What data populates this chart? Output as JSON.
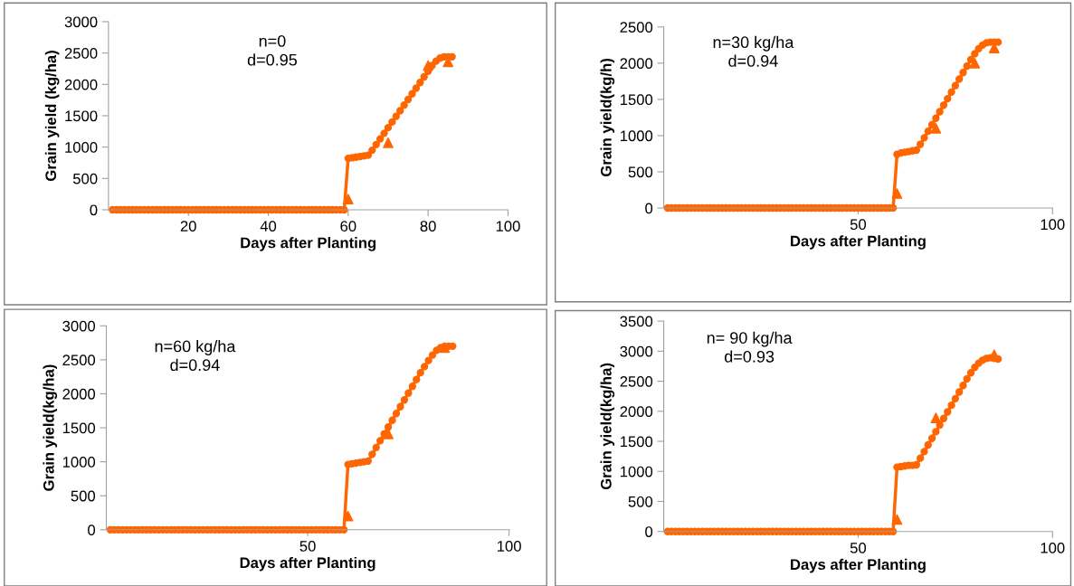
{
  "chart_data": [
    {
      "type": "line",
      "xlabel": "Days after Planting",
      "ylabel": "Grain yield (kg/ha)",
      "annotations": [
        "n=0\nd=0.95"
      ],
      "xlim": [
        0,
        100
      ],
      "xticks": [
        20,
        40,
        60,
        80,
        100
      ],
      "ylim": [
        0,
        3000
      ],
      "yticks": [
        0,
        500,
        1000,
        1500,
        2000,
        2500,
        3000
      ],
      "grid": false,
      "legend": false,
      "series": [
        {
          "type": "line",
          "marker": "circle",
          "color": "#ff6600",
          "x": [
            1,
            2,
            3,
            4,
            5,
            6,
            7,
            8,
            9,
            10,
            11,
            12,
            13,
            14,
            15,
            16,
            17,
            18,
            19,
            20,
            21,
            22,
            23,
            24,
            25,
            26,
            27,
            28,
            29,
            30,
            31,
            32,
            33,
            34,
            35,
            36,
            37,
            38,
            39,
            40,
            41,
            42,
            43,
            44,
            45,
            46,
            47,
            48,
            49,
            50,
            51,
            52,
            53,
            54,
            55,
            56,
            57,
            58,
            59,
            60,
            61,
            62,
            63,
            64,
            65,
            66,
            67,
            68,
            69,
            70,
            71,
            72,
            73,
            74,
            75,
            76,
            77,
            78,
            79,
            80,
            81,
            82,
            83,
            84,
            85,
            86
          ],
          "values": [
            0,
            0,
            0,
            0,
            0,
            0,
            0,
            0,
            0,
            0,
            0,
            0,
            0,
            0,
            0,
            0,
            0,
            0,
            0,
            0,
            0,
            0,
            0,
            0,
            0,
            0,
            0,
            0,
            0,
            0,
            0,
            0,
            0,
            0,
            0,
            0,
            0,
            0,
            0,
            0,
            0,
            0,
            0,
            0,
            0,
            0,
            0,
            0,
            0,
            0,
            0,
            0,
            0,
            0,
            0,
            0,
            0,
            0,
            0,
            820,
            830,
            840,
            850,
            860,
            870,
            950,
            1040,
            1130,
            1220,
            1310,
            1400,
            1490,
            1580,
            1670,
            1760,
            1850,
            1940,
            2030,
            2120,
            2210,
            2300,
            2370,
            2420,
            2440,
            2440,
            2440
          ]
        },
        {
          "type": "scatter",
          "marker": "triangle",
          "color": "#ff6600",
          "x": [
            60,
            70,
            80,
            85
          ],
          "values": [
            170,
            1070,
            2300,
            2360
          ]
        }
      ]
    },
    {
      "type": "line",
      "xlabel": "Days after Planting",
      "ylabel": "Grain yield(kg/h)",
      "annotations": [
        "n=30 kg/ha\nd=0.94"
      ],
      "xlim": [
        0,
        100
      ],
      "xticks": [
        50,
        100
      ],
      "ylim": [
        0,
        2500
      ],
      "yticks": [
        0,
        500,
        1000,
        1500,
        2000,
        2500
      ],
      "grid": false,
      "legend": false,
      "series": [
        {
          "type": "line",
          "marker": "circle",
          "color": "#ff6600",
          "x": [
            1,
            2,
            3,
            4,
            5,
            6,
            7,
            8,
            9,
            10,
            11,
            12,
            13,
            14,
            15,
            16,
            17,
            18,
            19,
            20,
            21,
            22,
            23,
            24,
            25,
            26,
            27,
            28,
            29,
            30,
            31,
            32,
            33,
            34,
            35,
            36,
            37,
            38,
            39,
            40,
            41,
            42,
            43,
            44,
            45,
            46,
            47,
            48,
            49,
            50,
            51,
            52,
            53,
            54,
            55,
            56,
            57,
            58,
            59,
            60,
            61,
            62,
            63,
            64,
            65,
            66,
            67,
            68,
            69,
            70,
            71,
            72,
            73,
            74,
            75,
            76,
            77,
            78,
            79,
            80,
            81,
            82,
            83,
            84,
            85,
            86
          ],
          "values": [
            0,
            0,
            0,
            0,
            0,
            0,
            0,
            0,
            0,
            0,
            0,
            0,
            0,
            0,
            0,
            0,
            0,
            0,
            0,
            0,
            0,
            0,
            0,
            0,
            0,
            0,
            0,
            0,
            0,
            0,
            0,
            0,
            0,
            0,
            0,
            0,
            0,
            0,
            0,
            0,
            0,
            0,
            0,
            0,
            0,
            0,
            0,
            0,
            0,
            0,
            0,
            0,
            0,
            0,
            0,
            0,
            0,
            0,
            0,
            740,
            760,
            770,
            780,
            790,
            800,
            880,
            970,
            1060,
            1150,
            1240,
            1330,
            1420,
            1510,
            1600,
            1690,
            1780,
            1870,
            1960,
            2050,
            2130,
            2200,
            2250,
            2280,
            2290,
            2290,
            2290
          ]
        },
        {
          "type": "scatter",
          "marker": "triangle",
          "color": "#ff6600",
          "x": [
            60,
            70,
            80,
            85
          ],
          "values": [
            200,
            1100,
            2000,
            2210
          ]
        }
      ]
    },
    {
      "type": "line",
      "xlabel": "Days after Planting",
      "ylabel": "Grain yield(kg/ha)",
      "annotations": [
        "n=60 kg/ha\nd=0.94"
      ],
      "xlim": [
        0,
        100
      ],
      "xticks": [
        50,
        100
      ],
      "ylim": [
        0,
        3000
      ],
      "yticks": [
        0,
        500,
        1000,
        1500,
        2000,
        2500,
        3000
      ],
      "grid": false,
      "legend": false,
      "series": [
        {
          "type": "line",
          "marker": "circle",
          "color": "#ff6600",
          "x": [
            1,
            2,
            3,
            4,
            5,
            6,
            7,
            8,
            9,
            10,
            11,
            12,
            13,
            14,
            15,
            16,
            17,
            18,
            19,
            20,
            21,
            22,
            23,
            24,
            25,
            26,
            27,
            28,
            29,
            30,
            31,
            32,
            33,
            34,
            35,
            36,
            37,
            38,
            39,
            40,
            41,
            42,
            43,
            44,
            45,
            46,
            47,
            48,
            49,
            50,
            51,
            52,
            53,
            54,
            55,
            56,
            57,
            58,
            59,
            60,
            61,
            62,
            63,
            64,
            65,
            66,
            67,
            68,
            69,
            70,
            71,
            72,
            73,
            74,
            75,
            76,
            77,
            78,
            79,
            80,
            81,
            82,
            83,
            84,
            85,
            86
          ],
          "values": [
            0,
            0,
            0,
            0,
            0,
            0,
            0,
            0,
            0,
            0,
            0,
            0,
            0,
            0,
            0,
            0,
            0,
            0,
            0,
            0,
            0,
            0,
            0,
            0,
            0,
            0,
            0,
            0,
            0,
            0,
            0,
            0,
            0,
            0,
            0,
            0,
            0,
            0,
            0,
            0,
            0,
            0,
            0,
            0,
            0,
            0,
            0,
            0,
            0,
            0,
            0,
            0,
            0,
            0,
            0,
            0,
            0,
            0,
            0,
            960,
            970,
            980,
            990,
            1000,
            1010,
            1110,
            1210,
            1310,
            1410,
            1510,
            1610,
            1710,
            1810,
            1910,
            2010,
            2110,
            2210,
            2310,
            2400,
            2490,
            2570,
            2640,
            2680,
            2700,
            2700,
            2700
          ]
        },
        {
          "type": "scatter",
          "marker": "triangle",
          "color": "#ff6600",
          "x": [
            60,
            70,
            84
          ],
          "values": [
            200,
            1410,
            2680
          ]
        }
      ]
    },
    {
      "type": "line",
      "xlabel": "Days after Planting",
      "ylabel": "Grain yield(kg/ha)",
      "annotations": [
        "n= 90 kg/ha\nd=0.93"
      ],
      "xlim": [
        0,
        100
      ],
      "xticks": [
        50,
        100
      ],
      "ylim": [
        0,
        3500
      ],
      "yticks": [
        0,
        500,
        1000,
        1500,
        2000,
        2500,
        3000,
        3500
      ],
      "grid": false,
      "legend": false,
      "series": [
        {
          "type": "line",
          "marker": "circle",
          "color": "#ff6600",
          "x": [
            1,
            2,
            3,
            4,
            5,
            6,
            7,
            8,
            9,
            10,
            11,
            12,
            13,
            14,
            15,
            16,
            17,
            18,
            19,
            20,
            21,
            22,
            23,
            24,
            25,
            26,
            27,
            28,
            29,
            30,
            31,
            32,
            33,
            34,
            35,
            36,
            37,
            38,
            39,
            40,
            41,
            42,
            43,
            44,
            45,
            46,
            47,
            48,
            49,
            50,
            51,
            52,
            53,
            54,
            55,
            56,
            57,
            58,
            59,
            60,
            61,
            62,
            63,
            64,
            65,
            66,
            67,
            68,
            69,
            70,
            71,
            72,
            73,
            74,
            75,
            76,
            77,
            78,
            79,
            80,
            81,
            82,
            83,
            84,
            85,
            86
          ],
          "values": [
            0,
            0,
            0,
            0,
            0,
            0,
            0,
            0,
            0,
            0,
            0,
            0,
            0,
            0,
            0,
            0,
            0,
            0,
            0,
            0,
            0,
            0,
            0,
            0,
            0,
            0,
            0,
            0,
            0,
            0,
            0,
            0,
            0,
            0,
            0,
            0,
            0,
            0,
            0,
            0,
            0,
            0,
            0,
            0,
            0,
            0,
            0,
            0,
            0,
            0,
            0,
            0,
            0,
            0,
            0,
            0,
            0,
            0,
            0,
            1070,
            1080,
            1090,
            1100,
            1100,
            1110,
            1220,
            1330,
            1440,
            1550,
            1660,
            1770,
            1880,
            1990,
            2100,
            2210,
            2320,
            2430,
            2540,
            2640,
            2730,
            2800,
            2850,
            2880,
            2890,
            2880,
            2870
          ]
        },
        {
          "type": "scatter",
          "marker": "triangle",
          "color": "#ff6600",
          "x": [
            60,
            70,
            85
          ],
          "values": [
            200,
            1890,
            2940
          ]
        }
      ]
    }
  ]
}
